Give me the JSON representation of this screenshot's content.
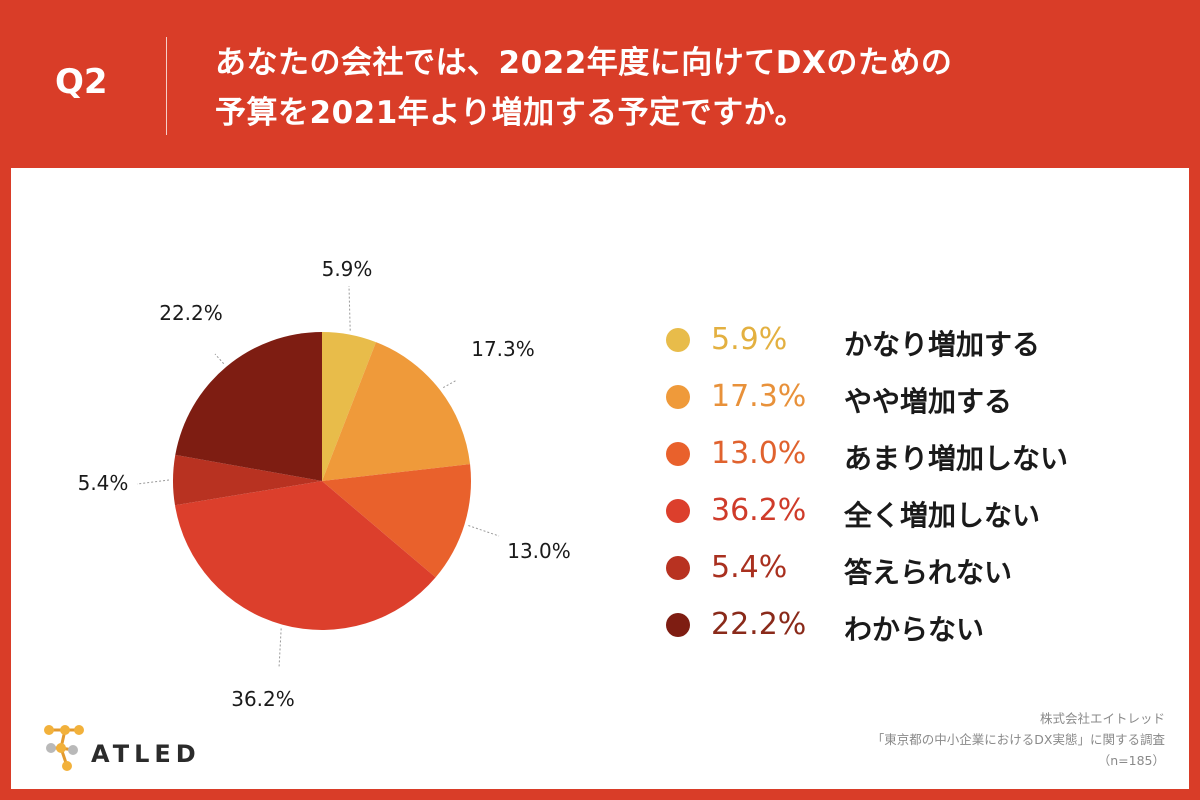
{
  "header": {
    "q_label": "Q2",
    "question_line1": "あなたの会社では、2022年度に向けてDXのための",
    "question_line2": "予算を2021年より増加する予定ですか。"
  },
  "chart_data": {
    "type": "pie",
    "title": "",
    "categories": [
      "かなり増加する",
      "やや増加する",
      "あまり増加しない",
      "全く増加しない",
      "答えられない",
      "わからない"
    ],
    "values": [
      5.9,
      17.3,
      13.0,
      36.2,
      5.4,
      22.2
    ],
    "labels": [
      "5.9%",
      "17.3%",
      "13.0%",
      "36.2%",
      "5.4%",
      "22.2%"
    ],
    "colors": [
      "#e8bc4a",
      "#ef9a3a",
      "#e9612c",
      "#dc3f2c",
      "#b83221",
      "#7e1d12"
    ],
    "legend_text_colors": [
      "#e3b040",
      "#e8913a",
      "#e0622e",
      "#cf3b2a",
      "#a9301f",
      "#8a2a1a"
    ],
    "start_angle": "12 o'clock",
    "direction": "clockwise",
    "legend_position": "right"
  },
  "footer": {
    "logo_text": "ATLED",
    "source_line1": "株式会社エイトレッド",
    "source_line2": "「東京都の中小企業におけるDX実態」に関する調査",
    "source_line3": "（n=185）"
  }
}
